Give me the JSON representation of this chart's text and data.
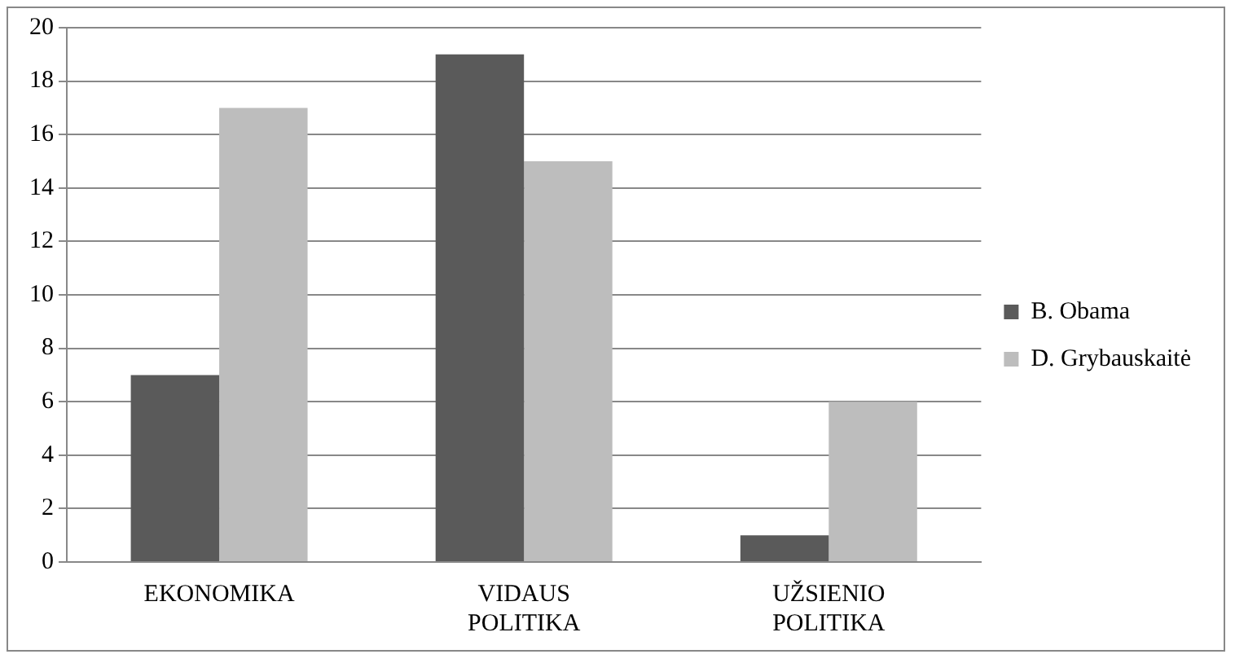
{
  "chart_data": {
    "type": "bar",
    "categories": [
      "EKONOMIKA",
      "VIDAUS POLITIKA",
      "UŽSIENIO POLITIKA"
    ],
    "series": [
      {
        "name": "B. Obama",
        "color": "#5a5a5a",
        "values": [
          7,
          19,
          1
        ]
      },
      {
        "name": "D. Grybauskaitė",
        "color": "#bdbdbd",
        "values": [
          17,
          15,
          6
        ]
      }
    ],
    "ylim": [
      0,
      20
    ],
    "yticks": [
      0,
      2,
      4,
      6,
      8,
      10,
      12,
      14,
      16,
      18,
      20
    ],
    "grid": "y",
    "legend": "right"
  }
}
